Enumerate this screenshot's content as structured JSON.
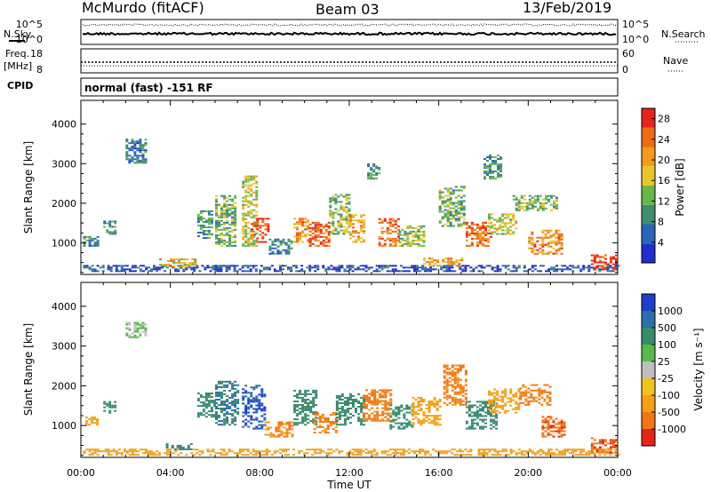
{
  "header": {
    "station": "McMurdo (fitACF)",
    "beam": "Beam 03",
    "date": "13/Feb/2019"
  },
  "noise_panel": {
    "left_label": "N.Sky",
    "right_label": "N.Search",
    "left_ticks": [
      "10^5",
      "10^0"
    ],
    "right_ticks": [
      "10^5",
      "10^0"
    ]
  },
  "freq_panel": {
    "left_label_1": "Freq.",
    "left_label_2": "[MHz]",
    "right_label": "Nave",
    "left_ticks": [
      "18",
      "8"
    ],
    "right_ticks": [
      "60",
      "0"
    ]
  },
  "cpid": {
    "label": "CPID",
    "text": "normal (fast) -151 RF"
  },
  "colors": {
    "power": [
      "#1f2ecc",
      "#2a66b8",
      "#3f8f6e",
      "#6ab64a",
      "#e8c52a",
      "#f29b1c",
      "#ee6a13",
      "#e5251a"
    ],
    "velocity": [
      "#1f3fc8",
      "#2b6fa8",
      "#3a8a6c",
      "#58b94a",
      "#bfbfbf",
      "#f2c21c",
      "#f5a018",
      "#f07814",
      "#e5251a"
    ]
  },
  "chart_data": [
    {
      "type": "heatmap",
      "quantity": "Power",
      "xlabel": "",
      "ylabel": "Slant Range [km]",
      "x_range_hours": [
        0,
        24
      ],
      "ylim": [
        200,
        4600
      ],
      "yticks": [
        "1000",
        "2000",
        "3000",
        "4000"
      ],
      "colorbar_label": "Power [dB]",
      "colorbar_ticks": [
        "4",
        "8",
        "12",
        "16",
        "20",
        "24",
        "28"
      ],
      "colorbar_range": [
        0,
        30
      ],
      "patches": [
        {
          "t0": 0.1,
          "t1": 24.0,
          "r0": 260,
          "r1": 420,
          "v": 4
        },
        {
          "t0": 0.1,
          "t1": 0.8,
          "r0": 900,
          "r1": 1150,
          "v": 8
        },
        {
          "t0": 1.0,
          "t1": 1.6,
          "r0": 1200,
          "r1": 1550,
          "v": 10
        },
        {
          "t0": 2.0,
          "t1": 2.9,
          "r0": 3000,
          "r1": 3600,
          "v": 8
        },
        {
          "t0": 3.5,
          "t1": 5.1,
          "r0": 380,
          "r1": 600,
          "v": 18
        },
        {
          "t0": 5.2,
          "t1": 5.9,
          "r0": 1100,
          "r1": 1800,
          "v": 10
        },
        {
          "t0": 6.0,
          "t1": 6.9,
          "r0": 900,
          "r1": 2200,
          "v": 12
        },
        {
          "t0": 7.2,
          "t1": 7.9,
          "r0": 900,
          "r1": 2700,
          "v": 16
        },
        {
          "t0": 7.6,
          "t1": 8.4,
          "r0": 1000,
          "r1": 1600,
          "v": 26
        },
        {
          "t0": 8.4,
          "t1": 9.4,
          "r0": 700,
          "r1": 1100,
          "v": 8
        },
        {
          "t0": 9.5,
          "t1": 10.2,
          "r0": 1000,
          "r1": 1600,
          "v": 22
        },
        {
          "t0": 10.2,
          "t1": 11.1,
          "r0": 900,
          "r1": 1500,
          "v": 26
        },
        {
          "t0": 11.1,
          "t1": 12.0,
          "r0": 1200,
          "r1": 2200,
          "v": 14
        },
        {
          "t0": 12.0,
          "t1": 12.6,
          "r0": 1000,
          "r1": 1700,
          "v": 20
        },
        {
          "t0": 12.8,
          "t1": 13.3,
          "r0": 2600,
          "r1": 3000,
          "v": 10
        },
        {
          "t0": 13.3,
          "t1": 14.2,
          "r0": 900,
          "r1": 1600,
          "v": 24
        },
        {
          "t0": 14.2,
          "t1": 15.3,
          "r0": 900,
          "r1": 1400,
          "v": 14
        },
        {
          "t0": 15.3,
          "t1": 17.0,
          "r0": 400,
          "r1": 600,
          "v": 20
        },
        {
          "t0": 16.0,
          "t1": 17.2,
          "r0": 1400,
          "r1": 2400,
          "v": 12
        },
        {
          "t0": 17.2,
          "t1": 18.4,
          "r0": 900,
          "r1": 1500,
          "v": 24
        },
        {
          "t0": 18.0,
          "t1": 18.8,
          "r0": 2600,
          "r1": 3200,
          "v": 10
        },
        {
          "t0": 18.2,
          "t1": 19.5,
          "r0": 1200,
          "r1": 1700,
          "v": 16
        },
        {
          "t0": 19.3,
          "t1": 21.3,
          "r0": 1800,
          "r1": 2200,
          "v": 12
        },
        {
          "t0": 20.0,
          "t1": 21.5,
          "r0": 700,
          "r1": 1300,
          "v": 22
        },
        {
          "t0": 22.8,
          "t1": 24.0,
          "r0": 300,
          "r1": 700,
          "v": 28
        }
      ]
    },
    {
      "type": "heatmap",
      "quantity": "Velocity",
      "xlabel": "Time UT",
      "ylabel": "Slant Range [km]",
      "x_range_hours": [
        0,
        24
      ],
      "xticks": [
        "00:00",
        "04:00",
        "08:00",
        "12:00",
        "16:00",
        "20:00",
        "00:00"
      ],
      "ylim": [
        200,
        4600
      ],
      "yticks": [
        "1000",
        "2000",
        "3000",
        "4000"
      ],
      "colorbar_label": "Velocity [m s⁻¹]",
      "colorbar_ticks": [
        "1000",
        "500",
        "100",
        "25",
        "-25",
        "-100",
        "-500",
        "-1000"
      ],
      "patches": [
        {
          "t0": 0.1,
          "t1": 24.0,
          "r0": 240,
          "r1": 420,
          "v": -100
        },
        {
          "t0": 0.2,
          "t1": 0.8,
          "r0": 1000,
          "r1": 1200,
          "v": -100
        },
        {
          "t0": 1.0,
          "t1": 1.6,
          "r0": 1300,
          "r1": 1600,
          "v": 100
        },
        {
          "t0": 2.0,
          "t1": 2.9,
          "r0": 3200,
          "r1": 3600,
          "v": 25
        },
        {
          "t0": 3.8,
          "t1": 5.0,
          "r0": 380,
          "r1": 560,
          "v": 250
        },
        {
          "t0": 5.2,
          "t1": 6.0,
          "r0": 1200,
          "r1": 1800,
          "v": 200
        },
        {
          "t0": 6.0,
          "t1": 7.0,
          "r0": 1000,
          "r1": 2100,
          "v": 300
        },
        {
          "t0": 7.2,
          "t1": 8.2,
          "r0": 900,
          "r1": 2000,
          "v": 800
        },
        {
          "t0": 8.2,
          "t1": 9.5,
          "r0": 700,
          "r1": 1100,
          "v": -300
        },
        {
          "t0": 9.5,
          "t1": 10.5,
          "r0": 1000,
          "r1": 1900,
          "v": 200
        },
        {
          "t0": 10.4,
          "t1": 11.4,
          "r0": 800,
          "r1": 1300,
          "v": -400
        },
        {
          "t0": 11.4,
          "t1": 12.6,
          "r0": 1000,
          "r1": 1800,
          "v": 150
        },
        {
          "t0": 12.6,
          "t1": 13.8,
          "r0": 1100,
          "r1": 1900,
          "v": -400
        },
        {
          "t0": 13.8,
          "t1": 14.8,
          "r0": 900,
          "r1": 1500,
          "v": 200
        },
        {
          "t0": 14.8,
          "t1": 16.0,
          "r0": 1000,
          "r1": 1700,
          "v": -200
        },
        {
          "t0": 16.2,
          "t1": 17.2,
          "r0": 1500,
          "r1": 2500,
          "v": -400
        },
        {
          "t0": 17.2,
          "t1": 18.6,
          "r0": 900,
          "r1": 1600,
          "v": 150
        },
        {
          "t0": 18.2,
          "t1": 19.6,
          "r0": 1300,
          "r1": 1900,
          "v": -200
        },
        {
          "t0": 19.6,
          "t1": 21.0,
          "r0": 1500,
          "r1": 2000,
          "v": -400
        },
        {
          "t0": 20.6,
          "t1": 21.6,
          "r0": 700,
          "r1": 1200,
          "v": -600
        },
        {
          "t0": 22.8,
          "t1": 24.0,
          "r0": 300,
          "r1": 700,
          "v": -700
        }
      ]
    }
  ]
}
